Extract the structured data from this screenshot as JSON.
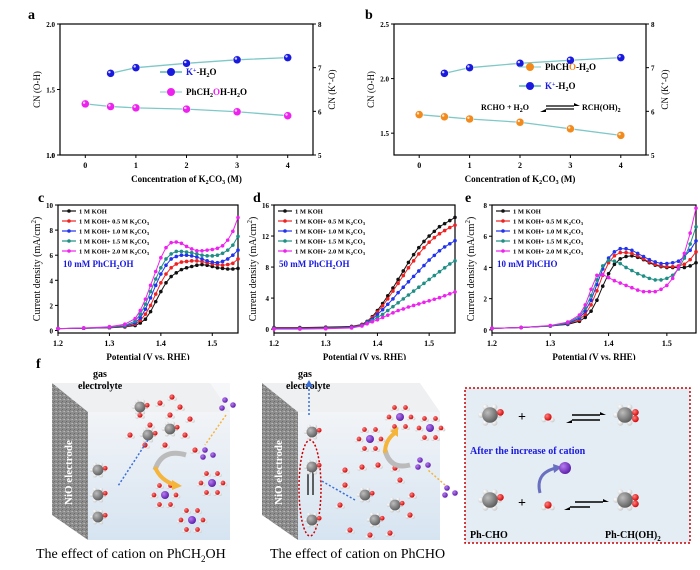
{
  "panels": {
    "a": "a",
    "b": "b",
    "c": "c",
    "d": "d",
    "e": "e",
    "f": "f"
  },
  "colors": {
    "k_h2o": "#1a1adf",
    "alcohol": "#ee22ee",
    "aldehyde": "#f28a1c",
    "link_line": "#7fc8c8",
    "lsv": [
      "#111111",
      "#ee2222",
      "#2233ee",
      "#1f8f86",
      "#ee22ee"
    ],
    "annot_blue": "#1a1adf"
  },
  "chart_data": [
    {
      "id": "a",
      "type": "line",
      "title": "",
      "xlabel": "Concentration of K2CO3 (M)",
      "ylabel": "CN (O-H)",
      "y2label": "CN (K+-O)",
      "xlim": [
        -0.5,
        4.5
      ],
      "ylim": [
        1.0,
        2.0
      ],
      "y2lim": [
        5,
        8
      ],
      "xticks": [
        0,
        1,
        2,
        3,
        4
      ],
      "yticks": [
        1.0,
        1.5,
        2.0
      ],
      "yticklabels": [
        "1.0",
        "1.5",
        "2.0"
      ],
      "y2ticks": [
        5,
        6,
        7,
        8
      ],
      "legend_position": "center",
      "series": [
        {
          "name": "K+-H2O",
          "axis": "right",
          "color_key": "k_h2o",
          "x": [
            0.5,
            1,
            2,
            3,
            4
          ],
          "y": [
            6.87,
            7.0,
            7.1,
            7.18,
            7.23
          ]
        },
        {
          "name": "PhCH2OH-H2O",
          "axis": "left",
          "color_key": "alcohol",
          "x": [
            0,
            0.5,
            1,
            2,
            3,
            4
          ],
          "y": [
            1.39,
            1.37,
            1.36,
            1.35,
            1.33,
            1.3
          ]
        }
      ],
      "legend": [
        {
          "pre": "K",
          "sup": "+",
          "post": "-H",
          "sub": "2",
          "tail": "O",
          "color_key": "k_h2o",
          "highlight": ""
        },
        {
          "pre": "PhCH",
          "sub": "2",
          "hl": "O",
          "tail": "H-H",
          "sub2": "2",
          "tail2": "O",
          "color_key": "alcohol"
        }
      ]
    },
    {
      "id": "b",
      "type": "line",
      "title": "",
      "xlabel": "Concentration of K2CO3 (M)",
      "ylabel": "CN (O-H)",
      "y2label": "CN (K+-O)",
      "xlim": [
        -0.5,
        4.5
      ],
      "ylim": [
        1.3,
        2.5
      ],
      "y2lim": [
        5,
        8
      ],
      "xticks": [
        0,
        1,
        2,
        3,
        4
      ],
      "yticks": [
        1.5,
        2.0,
        2.5
      ],
      "yticklabels": [
        "1.5",
        "2.0",
        "2.5"
      ],
      "y2ticks": [
        5,
        6,
        7,
        8
      ],
      "legend_position": "center-right",
      "series": [
        {
          "name": "PhCHO-H2O",
          "axis": "left",
          "color_key": "aldehyde",
          "x": [
            0,
            0.5,
            1,
            2,
            3,
            4
          ],
          "y": [
            1.67,
            1.65,
            1.63,
            1.6,
            1.54,
            1.48
          ]
        },
        {
          "name": "K+-H2O",
          "axis": "right",
          "color_key": "k_h2o",
          "x": [
            0.5,
            1,
            2,
            3,
            4
          ],
          "y": [
            6.87,
            7.0,
            7.1,
            7.17,
            7.23
          ]
        }
      ],
      "annotation": {
        "left": "RCHO  +  H2O",
        "right": "RCH(OH)2"
      }
    },
    {
      "id": "c",
      "type": "line",
      "xlabel": "Potential (V vs. RHE)",
      "ylabel": "Current density (mA/cm2)",
      "xlim": [
        1.2,
        1.55
      ],
      "ylim": [
        -0.2,
        10
      ],
      "xticks": [
        1.2,
        1.3,
        1.4,
        1.5
      ],
      "yticks": [
        0,
        2,
        4,
        6,
        8,
        10
      ],
      "annotation": "10 mM PhCH2OH",
      "legend_position": "top-left",
      "x": [
        1.2,
        1.25,
        1.3,
        1.33,
        1.35,
        1.36,
        1.37,
        1.38,
        1.39,
        1.4,
        1.41,
        1.42,
        1.43,
        1.44,
        1.45,
        1.46,
        1.47,
        1.48,
        1.49,
        1.5,
        1.51,
        1.52,
        1.53,
        1.54,
        1.55
      ],
      "series": [
        {
          "name": "1 M KOH",
          "y": [
            0.15,
            0.18,
            0.22,
            0.28,
            0.4,
            0.6,
            0.9,
            1.5,
            2.3,
            3.1,
            3.8,
            4.3,
            4.6,
            4.85,
            5.0,
            5.1,
            5.2,
            5.25,
            5.2,
            5.1,
            5.0,
            4.95,
            4.9,
            4.9,
            4.95
          ]
        },
        {
          "name": "1 M KOH + 0.5 M K2CO3",
          "y": [
            0.15,
            0.18,
            0.22,
            0.3,
            0.5,
            0.8,
            1.3,
            2.0,
            2.9,
            3.8,
            4.5,
            5.0,
            5.3,
            5.45,
            5.5,
            5.55,
            5.55,
            5.5,
            5.4,
            5.3,
            5.25,
            5.2,
            5.25,
            5.35,
            5.7
          ]
        },
        {
          "name": "1 M KOH + 1.0 M K2CO3",
          "y": [
            0.15,
            0.18,
            0.24,
            0.35,
            0.6,
            1.0,
            1.7,
            2.6,
            3.6,
            4.5,
            5.2,
            5.7,
            5.9,
            6.0,
            6.0,
            5.95,
            5.85,
            5.7,
            5.55,
            5.45,
            5.4,
            5.5,
            5.7,
            6.0,
            6.4
          ]
        },
        {
          "name": "1 M KOH + 1.5 M K2CO3",
          "y": [
            0.15,
            0.2,
            0.26,
            0.4,
            0.75,
            1.3,
            2.1,
            3.1,
            4.1,
            5.0,
            5.7,
            6.1,
            6.3,
            6.3,
            6.25,
            6.2,
            6.1,
            6.0,
            5.95,
            5.95,
            6.0,
            6.15,
            6.4,
            6.8,
            7.5
          ]
        },
        {
          "name": "1 M KOH + 2.0 M K2CO3",
          "y": [
            0.15,
            0.2,
            0.3,
            0.5,
            0.95,
            1.6,
            2.5,
            3.6,
            4.7,
            5.8,
            6.6,
            7.0,
            7.05,
            6.95,
            6.7,
            6.5,
            6.35,
            6.35,
            6.4,
            6.45,
            6.55,
            6.75,
            7.2,
            7.9,
            9.0
          ]
        }
      ]
    },
    {
      "id": "d",
      "type": "line",
      "xlabel": "Potential (V vs. RHE)",
      "ylabel": "Current density (mA/cm2)",
      "xlim": [
        1.2,
        1.55
      ],
      "ylim": [
        -0.5,
        16
      ],
      "xticks": [
        1.2,
        1.3,
        1.4,
        1.5
      ],
      "yticks": [
        0,
        4,
        8,
        12,
        16
      ],
      "annotation": "50 mM PhCH2OH",
      "legend_position": "top-left",
      "x": [
        1.2,
        1.25,
        1.3,
        1.35,
        1.37,
        1.38,
        1.39,
        1.4,
        1.41,
        1.42,
        1.43,
        1.44,
        1.45,
        1.46,
        1.47,
        1.48,
        1.49,
        1.5,
        1.51,
        1.52,
        1.53,
        1.54,
        1.55
      ],
      "series": [
        {
          "name": "1 M KOH",
          "y": [
            0.2,
            0.2,
            0.25,
            0.35,
            0.6,
            1.0,
            1.6,
            2.4,
            3.3,
            4.3,
            5.3,
            6.4,
            7.5,
            8.6,
            9.6,
            10.5,
            11.3,
            12.0,
            12.6,
            13.2,
            13.6,
            14.0,
            14.4
          ]
        },
        {
          "name": "1 M KOH + 0.5 M K2CO3",
          "y": [
            0.15,
            0.15,
            0.2,
            0.3,
            0.55,
            0.95,
            1.5,
            2.2,
            3.0,
            3.9,
            4.9,
            5.9,
            6.9,
            7.9,
            8.8,
            9.7,
            10.5,
            11.2,
            11.8,
            12.3,
            12.7,
            13.1,
            13.4
          ]
        },
        {
          "name": "1 M KOH + 1.0 M K2CO3",
          "y": [
            0.1,
            0.1,
            0.15,
            0.25,
            0.5,
            0.9,
            1.3,
            1.9,
            2.5,
            3.2,
            3.9,
            4.7,
            5.4,
            6.1,
            6.8,
            7.5,
            8.2,
            8.9,
            9.5,
            10.1,
            10.6,
            11.0,
            11.4
          ]
        },
        {
          "name": "1 M KOH + 1.5 M K2CO3",
          "y": [
            0.05,
            0.05,
            0.1,
            0.2,
            0.45,
            0.8,
            1.1,
            1.5,
            1.9,
            2.4,
            2.9,
            3.4,
            3.9,
            4.4,
            4.9,
            5.4,
            5.9,
            6.4,
            6.9,
            7.4,
            7.9,
            8.4,
            8.8
          ]
        },
        {
          "name": "1 M KOH + 2.0 M K2CO3",
          "y": [
            0.0,
            0.0,
            0.05,
            0.15,
            0.4,
            0.7,
            0.95,
            1.2,
            1.5,
            1.8,
            2.1,
            2.4,
            2.6,
            2.85,
            3.05,
            3.25,
            3.45,
            3.65,
            3.85,
            4.05,
            4.3,
            4.55,
            4.8
          ]
        }
      ]
    },
    {
      "id": "e",
      "type": "line",
      "xlabel": "Potential (V vs. RHE)",
      "ylabel": "Current density (mA/cm2)",
      "xlim": [
        1.2,
        1.55
      ],
      "ylim": [
        -0.2,
        8
      ],
      "xticks": [
        1.2,
        1.3,
        1.4,
        1.5
      ],
      "yticks": [
        0,
        2,
        4,
        6,
        8
      ],
      "annotation": "10 mM PhCHO",
      "legend_position": "top-left",
      "x": [
        1.2,
        1.25,
        1.3,
        1.33,
        1.35,
        1.36,
        1.37,
        1.38,
        1.39,
        1.4,
        1.41,
        1.42,
        1.43,
        1.44,
        1.45,
        1.46,
        1.47,
        1.48,
        1.49,
        1.5,
        1.51,
        1.52,
        1.53,
        1.54,
        1.55
      ],
      "series": [
        {
          "name": "1 M KOH",
          "y": [
            0.1,
            0.15,
            0.25,
            0.35,
            0.55,
            0.8,
            1.2,
            1.9,
            2.8,
            3.6,
            4.2,
            4.55,
            4.7,
            4.75,
            4.65,
            4.5,
            4.3,
            4.15,
            4.05,
            4.0,
            4.0,
            4.0,
            4.0,
            4.1,
            4.3
          ]
        },
        {
          "name": "1 M KOH + 0.5 M K2CO3",
          "y": [
            0.1,
            0.15,
            0.25,
            0.38,
            0.65,
            1.0,
            1.6,
            2.5,
            3.5,
            4.3,
            4.75,
            4.95,
            4.95,
            4.9,
            4.75,
            4.55,
            4.35,
            4.2,
            4.1,
            4.05,
            4.05,
            4.1,
            4.2,
            4.5,
            5.0
          ]
        },
        {
          "name": "1 M KOH + 1.0 M K2CO3",
          "y": [
            0.1,
            0.15,
            0.25,
            0.4,
            0.75,
            1.2,
            1.9,
            2.9,
            3.9,
            4.6,
            5.0,
            5.2,
            5.2,
            5.1,
            4.9,
            4.7,
            4.5,
            4.35,
            4.25,
            4.25,
            4.3,
            4.4,
            4.7,
            5.1,
            5.7
          ]
        },
        {
          "name": "1 M KOH + 1.5 M K2CO3",
          "y": [
            0.1,
            0.15,
            0.25,
            0.45,
            0.85,
            1.4,
            2.2,
            3.2,
            4.1,
            4.45,
            4.4,
            4.25,
            4.0,
            3.8,
            3.6,
            3.45,
            3.3,
            3.2,
            3.2,
            3.3,
            3.5,
            3.9,
            4.6,
            5.5,
            6.6
          ]
        },
        {
          "name": "1 M KOH + 2.0 M K2CO3",
          "y": [
            0.1,
            0.15,
            0.28,
            0.5,
            0.95,
            1.6,
            2.6,
            3.5,
            3.55,
            3.35,
            3.15,
            3.0,
            2.85,
            2.7,
            2.55,
            2.45,
            2.45,
            2.45,
            2.6,
            2.85,
            3.3,
            4.0,
            4.9,
            6.2,
            7.8
          ]
        }
      ]
    }
  ],
  "legend_lsv": [
    {
      "main": "1 M KOH",
      "sub": "",
      "tail": ""
    },
    {
      "main": "1 M KOH+ 0.5 M K",
      "sub": "2",
      "tail": "CO"
    },
    {
      "main": "1 M KOH+ 1.0 M K",
      "sub": "2",
      "tail": "CO"
    },
    {
      "main": "1 M KOH+ 1.5 M K",
      "sub": "2",
      "tail": "CO"
    },
    {
      "main": "1 M KOH+ 2.0 M K",
      "sub": "2",
      "tail": "CO"
    }
  ],
  "schematic": {
    "gas": "gas",
    "electrolyte": "electrolyte",
    "electrode": "NiO electrode",
    "after_cation": "After the increase of cation",
    "ph_cho": "Ph-CHO",
    "ph_ch_oh2": "Ph-CH(OH)",
    "k_label": "K",
    "caption_left": "The effect of cation on PhCH",
    "caption_left_tail": "OH",
    "caption_right": "The effect of cation on PhCHO"
  }
}
